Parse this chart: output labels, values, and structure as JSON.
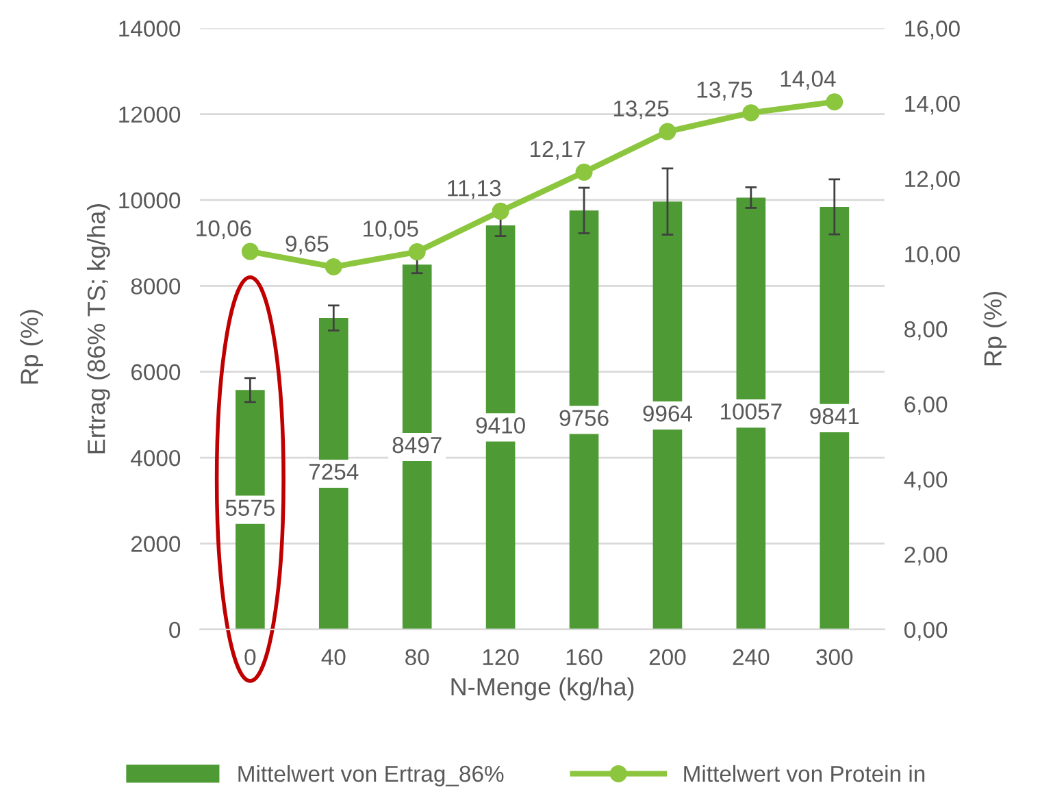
{
  "chart_data": {
    "type": "bar",
    "xlabel": "N-Menge (kg/ha)",
    "ylabel": "Ertrag (86% TS; kg/ha)",
    "y2label": "Rp (%)",
    "annotations": [
      "Rp (%)"
    ],
    "categories": [
      "0",
      "40",
      "80",
      "120",
      "160",
      "200",
      "240",
      "300"
    ],
    "series": [
      {
        "name": "Mittelwert von Ertrag_86%",
        "color": "#4e9a35",
        "values": [
          5575,
          7254,
          8497,
          9410,
          9756,
          9964,
          10057,
          9841
        ],
        "errors": [
          280,
          290,
          200,
          250,
          530,
          770,
          240,
          640
        ],
        "value_labels": [
          "5575",
          "7254",
          "8497",
          "9410",
          "9756",
          "9964",
          "10057",
          "9841"
        ]
      },
      {
        "name": "Mittelwert von Protein in",
        "type": "line",
        "axis": "y2",
        "color": "#8cc63e",
        "marker": "circle",
        "values": [
          10.06,
          9.65,
          10.05,
          11.13,
          12.17,
          13.25,
          13.75,
          14.04
        ],
        "value_labels": [
          "10,06",
          "9,65",
          "10,05",
          "11,13",
          "12,17",
          "13,25",
          "13,75",
          "14,04"
        ]
      }
    ],
    "ylim": [
      0,
      14000
    ],
    "yticks": [
      0,
      2000,
      4000,
      6000,
      8000,
      10000,
      12000,
      14000
    ],
    "y2lim": [
      0,
      16
    ],
    "y2ticks": [
      {
        "value": 0,
        "label": "0,00"
      },
      {
        "value": 2,
        "label": "2,00"
      },
      {
        "value": 4,
        "label": "4,00"
      },
      {
        "value": 6,
        "label": "6,00"
      },
      {
        "value": 8,
        "label": "8,00"
      },
      {
        "value": 10,
        "label": "10,00"
      },
      {
        "value": 12,
        "label": "12,00"
      },
      {
        "value": 14,
        "label": "14,00"
      },
      {
        "value": 16,
        "label": "16,00"
      }
    ],
    "grid": "y",
    "legend": "bottom"
  }
}
